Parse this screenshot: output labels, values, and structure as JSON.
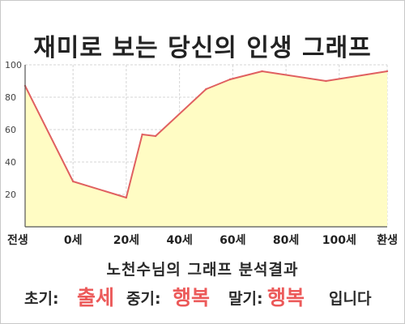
{
  "chart_data": {
    "type": "area",
    "title": "재미로 보는 당신의 인생 그래프",
    "categories": [
      "전생",
      "0세",
      "20세",
      "40세",
      "60세",
      "80세",
      "100세",
      "환생"
    ],
    "x_tick_positions": [
      -18,
      0,
      20,
      40,
      60,
      80,
      100,
      118
    ],
    "points": [
      {
        "x": -18,
        "y": 87
      },
      {
        "x": 0,
        "y": 28
      },
      {
        "x": 20,
        "y": 18
      },
      {
        "x": 26,
        "y": 57
      },
      {
        "x": 31,
        "y": 56
      },
      {
        "x": 50,
        "y": 85
      },
      {
        "x": 59,
        "y": 91
      },
      {
        "x": 71,
        "y": 96
      },
      {
        "x": 95,
        "y": 90
      },
      {
        "x": 118,
        "y": 96
      }
    ],
    "y_ticks": [
      "20",
      "40",
      "60",
      "80",
      "100"
    ],
    "ylim": [
      0,
      100
    ],
    "grid": true,
    "colors": {
      "line": "#e06060",
      "fill": "#fffcc4",
      "grid": "#d4d4d4",
      "axis": "#555555",
      "highlight": "#ec5a5a"
    }
  },
  "footer": {
    "line1": "노천수님의 그래프 분석결과",
    "early_label": "초기:",
    "early_value": "출세",
    "mid_label": "중기:",
    "mid_value": "행복",
    "late_label": "말기:",
    "late_value": "행복",
    "ending": "입니다"
  }
}
